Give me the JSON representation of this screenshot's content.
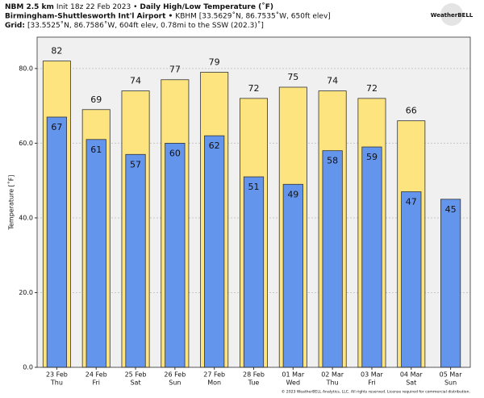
{
  "header": {
    "line1": [
      {
        "text": "NBM 2.5 km",
        "bold": true
      },
      {
        "text": "Init 18z 22 Feb 2023 •",
        "bold": false
      },
      {
        "text": "Daily High/Low Temperature (˚F)",
        "bold": true
      }
    ],
    "line2": [
      {
        "text": "Birmingham-Shuttlesworth Int'l Airport •",
        "bold": true
      },
      {
        "text": "KBHM [33.5629˚N, 86.7535˚W, 650ft elev]",
        "bold": false
      }
    ],
    "line3": [
      {
        "text": "Grid:",
        "bold": true
      },
      {
        "text": "[33.5525˚N, 86.7586˚W, 604ft elev, 0.78mi to the SSW (202.3)˚]",
        "bold": false
      }
    ]
  },
  "logo": "WeatherBELL",
  "footer": "© 2023 WeatherBELL Analytics, LLC. All rights reserved. License required for commercial distribution.",
  "chart_data": {
    "type": "bar",
    "ylabel": "Temperature [˚F]",
    "categories": [
      "23 Feb",
      "24 Feb",
      "25 Feb",
      "26 Feb",
      "27 Feb",
      "28 Feb",
      "01 Mar",
      "02 Mar",
      "03 Mar",
      "04 Mar",
      "05 Mar"
    ],
    "weekdays": [
      "Thu",
      "Fri",
      "Sat",
      "Sun",
      "Mon",
      "Tue",
      "Wed",
      "Thu",
      "Fri",
      "Sat",
      "Sun"
    ],
    "series": [
      {
        "name": "High",
        "color": "#fde47f",
        "values": [
          82,
          69,
          74,
          77,
          79,
          72,
          75,
          74,
          72,
          66,
          null
        ]
      },
      {
        "name": "Low",
        "color": "#6495ed",
        "values": [
          67,
          61,
          57,
          60,
          62,
          51,
          49,
          58,
          59,
          47,
          45
        ]
      }
    ],
    "ylim": [
      0,
      88.4
    ],
    "yticks": [
      {
        "value": 0,
        "label": "0.0"
      },
      {
        "value": 20,
        "label": "20.0"
      },
      {
        "value": 40,
        "label": "40.0"
      },
      {
        "value": 60,
        "label": "60.0"
      },
      {
        "value": 80,
        "label": "80.0"
      }
    ],
    "grid": true
  }
}
